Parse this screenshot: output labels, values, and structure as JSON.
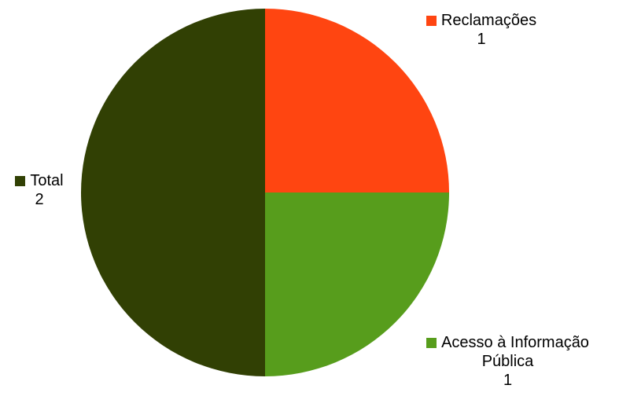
{
  "chart_data": {
    "type": "pie",
    "title": "",
    "slices": [
      {
        "label": "Reclamações",
        "value": 1,
        "value_label": "1",
        "color": "#ff4511"
      },
      {
        "label": "Acesso à Informação Pública",
        "label_line1": "Acesso à Informação",
        "label_line2": "Pública",
        "value": 1,
        "value_label": "1",
        "color": "#579d1c"
      },
      {
        "label": "Total",
        "value": 2,
        "value_label": "2",
        "color": "#314004"
      }
    ],
    "start_angle": "12 o'clock",
    "direction": "clockwise",
    "legend": "none (labels placed beside slices)"
  }
}
